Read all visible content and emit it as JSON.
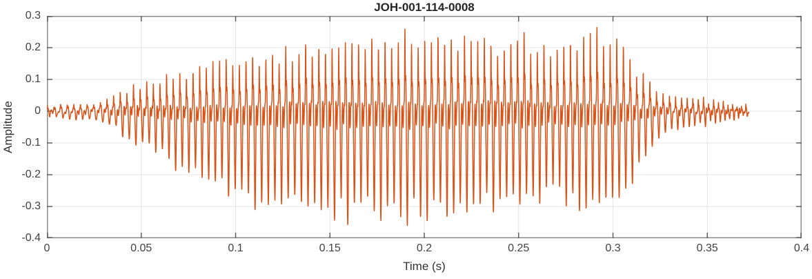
{
  "chart_data": {
    "type": "line",
    "title": "JOH-001-114-0008",
    "xlabel": "Time (s)",
    "ylabel": "Amplitude",
    "xlim": [
      0,
      0.4
    ],
    "ylim": [
      -0.4,
      0.3
    ],
    "xticks": [
      0,
      0.05,
      0.1,
      0.15,
      0.2,
      0.25,
      0.3,
      0.35,
      0.4
    ],
    "xtick_labels": [
      "0",
      "0.05",
      "0.1",
      "0.15",
      "0.2",
      "0.25",
      "0.3",
      "0.35",
      "0.4"
    ],
    "yticks": [
      0.3,
      0.2,
      0.1,
      0,
      -0.1,
      -0.2,
      -0.3,
      -0.4
    ],
    "ytick_labels": [
      "0.3",
      "0.2",
      "0.1",
      "0",
      "-0.1",
      "-0.2",
      "-0.3",
      "-0.4"
    ],
    "grid": true,
    "legend": null,
    "line_color": "#d95319",
    "colors": {
      "axis_box": "#8c8c8c",
      "tick_mark": "#565656",
      "grid_line": "#e4e4e4",
      "tick_text": "#424242",
      "title_text": "#262626",
      "background": "#ffffff"
    },
    "signal": {
      "description": "Voiced speech waveform, ~285 Hz glottal pulses; asymmetric envelope (positive peaks ~+0.24 max, troughs ~-0.32); quiet noise before 0.033 s; decays to low ripple after 0.325 s; recording ends at 0.372 s.",
      "duration_s": 0.372,
      "f0_hz": 285,
      "envelope": {
        "t": [
          0,
          0.008,
          0.016,
          0.022,
          0.028,
          0.033,
          0.038,
          0.044,
          0.05,
          0.058,
          0.068,
          0.078,
          0.088,
          0.098,
          0.108,
          0.118,
          0.128,
          0.14,
          0.152,
          0.164,
          0.176,
          0.188,
          0.2,
          0.212,
          0.224,
          0.236,
          0.246,
          0.252,
          0.26,
          0.27,
          0.278,
          0.286,
          0.293,
          0.298,
          0.304,
          0.31,
          0.316,
          0.322,
          0.328,
          0.336,
          0.346,
          0.356,
          0.364,
          0.372
        ],
        "pos": [
          0.012,
          0.016,
          0.02,
          0.016,
          0.022,
          0.045,
          0.055,
          0.075,
          0.085,
          0.1,
          0.11,
          0.125,
          0.15,
          0.16,
          0.165,
          0.17,
          0.18,
          0.205,
          0.2,
          0.21,
          0.225,
          0.225,
          0.22,
          0.215,
          0.22,
          0.205,
          0.2,
          0.23,
          0.2,
          0.18,
          0.19,
          0.21,
          0.23,
          0.24,
          0.195,
          0.15,
          0.12,
          0.08,
          0.05,
          0.042,
          0.035,
          0.028,
          0.022,
          0.014
        ],
        "neg": [
          0.012,
          0.018,
          0.03,
          0.02,
          0.025,
          0.045,
          0.065,
          0.09,
          0.105,
          0.13,
          0.16,
          0.185,
          0.22,
          0.25,
          0.27,
          0.285,
          0.295,
          0.305,
          0.31,
          0.315,
          0.315,
          0.315,
          0.315,
          0.31,
          0.31,
          0.3,
          0.29,
          0.285,
          0.27,
          0.26,
          0.27,
          0.285,
          0.3,
          0.31,
          0.25,
          0.2,
          0.155,
          0.11,
          0.07,
          0.055,
          0.042,
          0.032,
          0.024,
          0.015
        ]
      }
    }
  }
}
